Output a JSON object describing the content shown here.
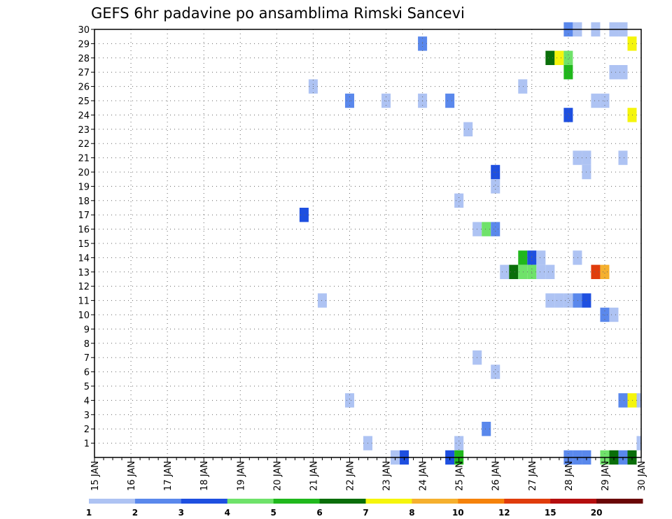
{
  "chart_data": {
    "type": "heatmap",
    "title": "GEFS 6hr padavine po ansamblima Rimski Sancevi",
    "xlabel": "",
    "ylabel": "",
    "x_tick_labels": [
      "15 JAN",
      "16 JAN",
      "17 JAN",
      "18 JAN",
      "19 JAN",
      "20 JAN",
      "21 JAN",
      "22 JAN",
      "23 JAN",
      "24 JAN",
      "25 JAN",
      "26 JAN",
      "27 JAN",
      "28 JAN",
      "29 JAN",
      "30 JAN"
    ],
    "x_range_days": [
      15,
      30
    ],
    "y_tick_labels": [
      "1",
      "2",
      "3",
      "4",
      "5",
      "6",
      "7",
      "8",
      "9",
      "10",
      "11",
      "12",
      "13",
      "14",
      "15",
      "16",
      "17",
      "18",
      "19",
      "20",
      "21",
      "22",
      "23",
      "24",
      "25",
      "26",
      "27",
      "28",
      "29",
      "30"
    ],
    "y_range": [
      0,
      30
    ],
    "grid": true,
    "colorbar": {
      "labels": [
        "1",
        "2",
        "3",
        "4",
        "5",
        "6",
        "7",
        "8",
        "10",
        "12",
        "15",
        "20"
      ],
      "colors": [
        "#aec3f3",
        "#5a88ec",
        "#1e4fe0",
        "#6fe26a",
        "#20b81c",
        "#0a6e0a",
        "#f5f50c",
        "#f5b02e",
        "#f5820a",
        "#e03c0c",
        "#b40e0e",
        "#6a0606"
      ]
    },
    "cells": [
      {
        "x": 28.0,
        "y": 30,
        "c": 2
      },
      {
        "x": 28.25,
        "y": 30,
        "c": 1
      },
      {
        "x": 28.75,
        "y": 30,
        "c": 1
      },
      {
        "x": 29.25,
        "y": 30,
        "c": 1
      },
      {
        "x": 29.5,
        "y": 30,
        "c": 1
      },
      {
        "x": 24.0,
        "y": 29,
        "c": 2
      },
      {
        "x": 29.75,
        "y": 29,
        "c": 7
      },
      {
        "x": 27.5,
        "y": 28,
        "c": 6
      },
      {
        "x": 27.75,
        "y": 28,
        "c": 7
      },
      {
        "x": 28.0,
        "y": 28,
        "c": 4
      },
      {
        "x": 28.0,
        "y": 27,
        "c": 5
      },
      {
        "x": 29.25,
        "y": 27,
        "c": 1
      },
      {
        "x": 29.5,
        "y": 27,
        "c": 1
      },
      {
        "x": 21.0,
        "y": 26,
        "c": 1
      },
      {
        "x": 26.75,
        "y": 26,
        "c": 1
      },
      {
        "x": 22.0,
        "y": 25,
        "c": 2
      },
      {
        "x": 23.0,
        "y": 25,
        "c": 1
      },
      {
        "x": 24.0,
        "y": 25,
        "c": 1
      },
      {
        "x": 24.75,
        "y": 25,
        "c": 2
      },
      {
        "x": 28.75,
        "y": 25,
        "c": 1
      },
      {
        "x": 29.0,
        "y": 25,
        "c": 1
      },
      {
        "x": 28.0,
        "y": 24,
        "c": 3
      },
      {
        "x": 29.75,
        "y": 24,
        "c": 7
      },
      {
        "x": 25.25,
        "y": 23,
        "c": 1
      },
      {
        "x": 28.25,
        "y": 21,
        "c": 1
      },
      {
        "x": 28.5,
        "y": 21,
        "c": 1
      },
      {
        "x": 29.5,
        "y": 21,
        "c": 1
      },
      {
        "x": 26.0,
        "y": 20,
        "c": 3
      },
      {
        "x": 28.5,
        "y": 20,
        "c": 1
      },
      {
        "x": 26.0,
        "y": 19,
        "c": 1
      },
      {
        "x": 25.0,
        "y": 18,
        "c": 1
      },
      {
        "x": 20.75,
        "y": 17,
        "c": 3
      },
      {
        "x": 25.5,
        "y": 16,
        "c": 1
      },
      {
        "x": 25.75,
        "y": 16,
        "c": 4
      },
      {
        "x": 26.0,
        "y": 16,
        "c": 2
      },
      {
        "x": 26.75,
        "y": 14,
        "c": 5
      },
      {
        "x": 27.0,
        "y": 14,
        "c": 3
      },
      {
        "x": 27.25,
        "y": 14,
        "c": 1
      },
      {
        "x": 28.25,
        "y": 14,
        "c": 1
      },
      {
        "x": 26.25,
        "y": 13,
        "c": 1
      },
      {
        "x": 26.5,
        "y": 13,
        "c": 6
      },
      {
        "x": 26.75,
        "y": 13,
        "c": 4
      },
      {
        "x": 27.0,
        "y": 13,
        "c": 4
      },
      {
        "x": 27.25,
        "y": 13,
        "c": 1
      },
      {
        "x": 27.5,
        "y": 13,
        "c": 1
      },
      {
        "x": 28.75,
        "y": 13,
        "c": 10
      },
      {
        "x": 29.0,
        "y": 13,
        "c": 8
      },
      {
        "x": 21.25,
        "y": 11,
        "c": 1
      },
      {
        "x": 27.5,
        "y": 11,
        "c": 1
      },
      {
        "x": 27.75,
        "y": 11,
        "c": 1
      },
      {
        "x": 28.0,
        "y": 11,
        "c": 1
      },
      {
        "x": 28.25,
        "y": 11,
        "c": 2
      },
      {
        "x": 28.5,
        "y": 11,
        "c": 3
      },
      {
        "x": 29.0,
        "y": 10,
        "c": 2
      },
      {
        "x": 29.25,
        "y": 10,
        "c": 1
      },
      {
        "x": 25.5,
        "y": 7,
        "c": 1
      },
      {
        "x": 26.0,
        "y": 6,
        "c": 1
      },
      {
        "x": 22.0,
        "y": 4,
        "c": 1
      },
      {
        "x": 29.5,
        "y": 4,
        "c": 2
      },
      {
        "x": 29.75,
        "y": 4,
        "c": 7
      },
      {
        "x": 30.0,
        "y": 4,
        "c": 1
      },
      {
        "x": 25.75,
        "y": 2,
        "c": 2
      },
      {
        "x": 22.5,
        "y": 1,
        "c": 1
      },
      {
        "x": 25.0,
        "y": 1,
        "c": 1
      },
      {
        "x": 30.0,
        "y": 1,
        "c": 1
      },
      {
        "x": 23.25,
        "y": 0,
        "c": 1
      },
      {
        "x": 23.5,
        "y": 0,
        "c": 3
      },
      {
        "x": 24.75,
        "y": 0,
        "c": 3
      },
      {
        "x": 25.0,
        "y": 0,
        "c": 5
      },
      {
        "x": 28.0,
        "y": 0,
        "c": 2
      },
      {
        "x": 28.25,
        "y": 0,
        "c": 2
      },
      {
        "x": 28.5,
        "y": 0,
        "c": 2
      },
      {
        "x": 29.0,
        "y": 0,
        "c": 4
      },
      {
        "x": 29.25,
        "y": 0,
        "c": 6
      },
      {
        "x": 29.5,
        "y": 0,
        "c": 2
      },
      {
        "x": 29.75,
        "y": 0,
        "c": 6
      }
    ]
  }
}
